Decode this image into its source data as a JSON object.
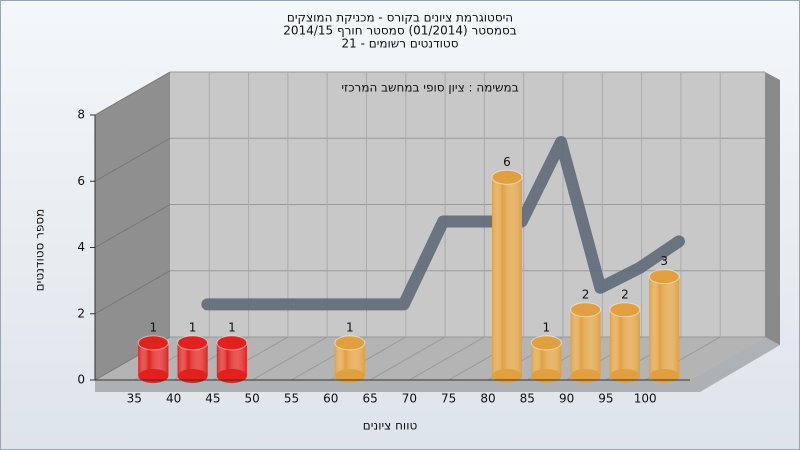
{
  "chart_data": {
    "type": "bar3d",
    "title": [
      "היסטוגרמת ציונים בקורס - מכניקת המוצקים",
      "בסמסטר  (01/2014)  סמסטר חורף 2014/15",
      "סטודנטים רשומים - 21"
    ],
    "subtitle": "במשימה : ציון סופי במחשב המרכזי",
    "x_label": "טווח ציונים",
    "y_label": "מספר סטודנטים",
    "categories": [
      "35",
      "40",
      "45",
      "50",
      "55",
      "60",
      "65",
      "70",
      "75",
      "80",
      "85",
      "90",
      "95",
      "100"
    ],
    "series": [
      {
        "values": [
          1,
          1,
          1,
          0,
          0,
          1,
          0,
          0,
          0,
          6,
          1,
          2,
          2,
          3
        ],
        "value_labels": [
          "1",
          "1",
          "1",
          null,
          null,
          "1",
          null,
          null,
          null,
          "6",
          "1",
          "2",
          "2",
          "3"
        ],
        "colors": [
          "#e0211d",
          "#e0211d",
          "#e0211d",
          "#e0a040",
          "#e0a040",
          "#e0a040",
          "#e0a040",
          "#e0a040",
          "#e0a040",
          "#e0a040",
          "#e0a040",
          "#e0a040",
          "#e0a040",
          "#e0a040"
        ]
      },
      {
        "values": [
          null,
          1.7,
          1.7,
          1.7,
          1.7,
          1.7,
          1.7,
          4.2,
          4.2,
          4.2,
          6.6,
          2.2,
          2.8,
          3.6
        ],
        "color": "#5f6a78"
      }
    ],
    "ylim": [
      0,
      8
    ],
    "yticks": [
      0,
      2,
      4,
      6,
      8
    ],
    "grid": true
  }
}
